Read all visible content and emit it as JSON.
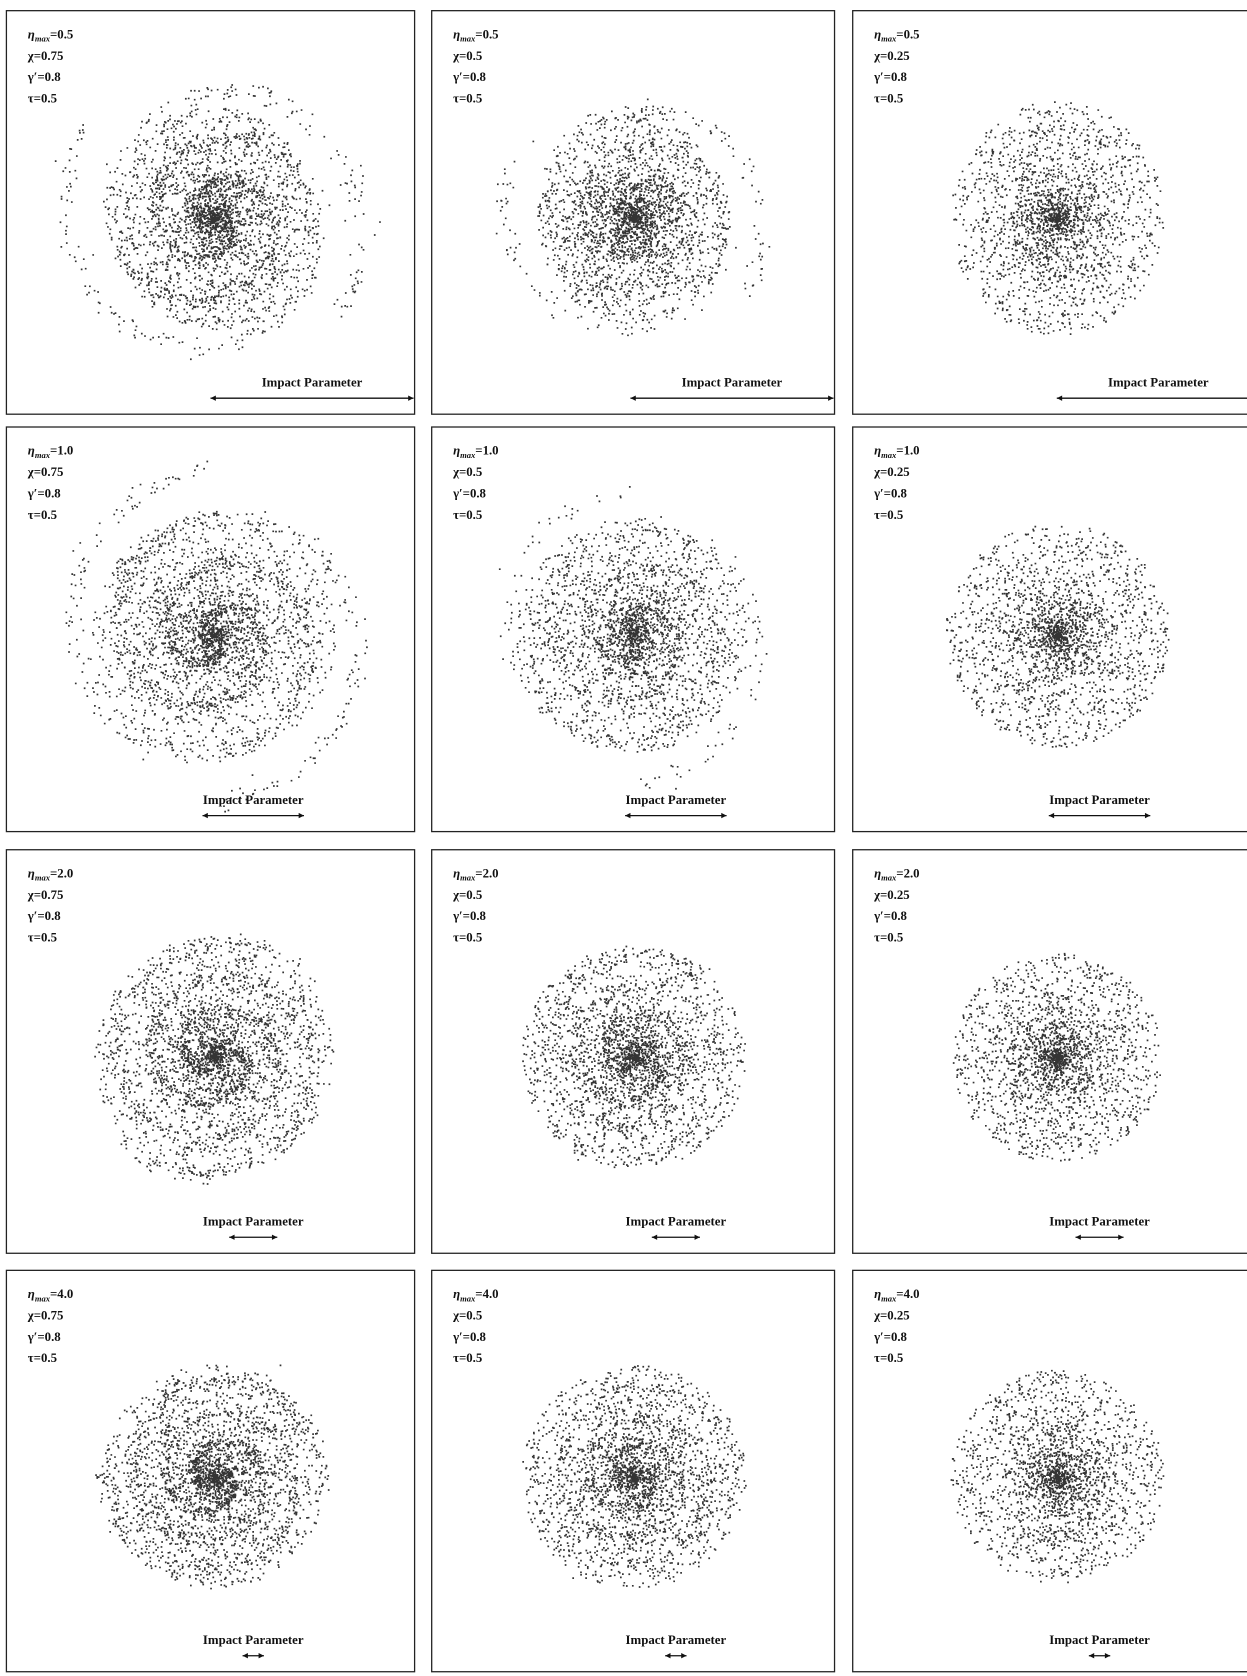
{
  "panels": [
    {
      "eta": {
        "symbol": "η",
        "subscript": "max",
        "value": "=0.5"
      },
      "lines": [
        "χ=0.75",
        "γ′=0.8",
        "τ=0.5"
      ],
      "axis_label": "Impact Parameter"
    },
    {
      "eta": {
        "symbol": "η",
        "subscript": "max",
        "value": "=0.5"
      },
      "lines": [
        "χ=0.5",
        "γ′=0.8",
        "τ=0.5"
      ],
      "axis_label": "Impact Parameter"
    },
    {
      "eta": {
        "symbol": "η",
        "subscript": "max",
        "value": "=0.5"
      },
      "lines": [
        "χ=0.25",
        "γ′=0.8",
        "τ=0.5"
      ],
      "axis_label": "Impact Parameter"
    },
    {
      "eta": {
        "symbol": "η",
        "subscript": "max",
        "value": "=1.0"
      },
      "lines": [
        "χ=0.75",
        "γ′=0.8",
        "τ=0.5"
      ],
      "axis_label": "Impact Parameter"
    },
    {
      "eta": {
        "symbol": "η",
        "subscript": "max",
        "value": "=1.0"
      },
      "lines": [
        "χ=0.5",
        "γ′=0.8",
        "τ=0.5"
      ],
      "axis_label": "Impact Parameter"
    },
    {
      "eta": {
        "symbol": "η",
        "subscript": "max",
        "value": "=1.0"
      },
      "lines": [
        "χ=0.25",
        "γ′=0.8",
        "τ=0.5"
      ],
      "axis_label": "Impact Parameter"
    },
    {
      "eta": {
        "symbol": "η",
        "subscript": "max",
        "value": "=2.0"
      },
      "lines": [
        "χ=0.75",
        "γ′=0.8",
        "τ=0.5"
      ],
      "axis_label": "Impact Parameter"
    },
    {
      "eta": {
        "symbol": "η",
        "subscript": "max",
        "value": "=2.0"
      },
      "lines": [
        "χ=0.5",
        "γ′=0.8",
        "τ=0.5"
      ],
      "axis_label": "Impact Parameter"
    },
    {
      "eta": {
        "symbol": "η",
        "subscript": "max",
        "value": "=2.0"
      },
      "lines": [
        "χ=0.25",
        "γ′=0.8",
        "τ=0.5"
      ],
      "axis_label": "Impact Parameter"
    },
    {
      "eta": {
        "symbol": "η",
        "subscript": "max",
        "value": "=4.0"
      },
      "lines": [
        "χ=0.75",
        "γ′=0.8",
        "τ=0.5"
      ],
      "axis_label": "Impact Parameter"
    },
    {
      "eta": {
        "symbol": "η",
        "subscript": "max",
        "value": "=4.0"
      },
      "lines": [
        "χ=0.5",
        "γ′=0.8",
        "τ=0.5"
      ],
      "axis_label": "Impact Parameter"
    },
    {
      "eta": {
        "symbol": "η",
        "subscript": "max",
        "value": "=4.0"
      },
      "lines": [
        "χ=0.25",
        "γ′=0.8",
        "τ=0.5"
      ],
      "axis_label": "Impact Parameter"
    }
  ]
}
